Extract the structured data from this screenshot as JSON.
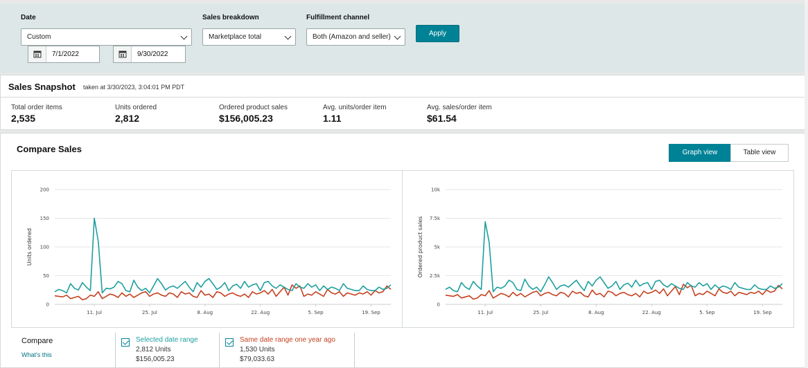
{
  "filters": {
    "date_label": "Date",
    "date_select": "Custom",
    "start_date": "7/1/2022",
    "end_date": "9/30/2022",
    "breakdown_label": "Sales breakdown",
    "breakdown_select": "Marketplace total",
    "channel_label": "Fulfillment channel",
    "channel_select": "Both (Amazon and seller)",
    "apply_label": "Apply"
  },
  "snapshot": {
    "title": "Sales Snapshot",
    "taken": "taken at 3/30/2023, 3:04:01 PM PDT",
    "metrics": [
      {
        "label": "Total order items",
        "value": "2,535"
      },
      {
        "label": "Units ordered",
        "value": "2,812"
      },
      {
        "label": "Ordered product sales",
        "value": "$156,005.23"
      },
      {
        "label": "Avg. units/order item",
        "value": "1.11"
      },
      {
        "label": "Avg. sales/order item",
        "value": "$61.54"
      }
    ]
  },
  "compare": {
    "title": "Compare Sales",
    "graph_view": "Graph view",
    "table_view": "Table view",
    "compare_label": "Compare",
    "whats_this": "What's this",
    "selected": {
      "title": "Selected date range",
      "units": "2,812 Units",
      "sales": "$156,005.23",
      "color": "#1e9e9e"
    },
    "previous": {
      "title": "Same date range one year ago",
      "units": "1,530 Units",
      "sales": "$79,033.63",
      "color": "#c5401f"
    }
  },
  "chart_data": [
    {
      "type": "line",
      "ylabel": "Units ordered",
      "ylim": [
        0,
        200
      ],
      "yticks": [
        "200",
        "150",
        "100",
        "50",
        "0"
      ],
      "yticks_values": [
        200,
        150,
        100,
        50,
        0
      ],
      "xticks": [
        "11. Jul",
        "25. Jul",
        "8. Aug",
        "22. Aug",
        "5. Sep",
        "19. Sep"
      ],
      "xticks_index": [
        10,
        24,
        38,
        52,
        66,
        80
      ],
      "series": [
        {
          "values": [
            22,
            26,
            24,
            20,
            36,
            28,
            25,
            38,
            30,
            24,
            150,
            110,
            20,
            28,
            27,
            30,
            40,
            36,
            24,
            22,
            42,
            30,
            24,
            28,
            20,
            32,
            45,
            36,
            25,
            30,
            32,
            28,
            34,
            40,
            30,
            22,
            38,
            30,
            40,
            45,
            36,
            26,
            30,
            38,
            24,
            32,
            35,
            28,
            40,
            30,
            34,
            36,
            24,
            38,
            40,
            32,
            28,
            34,
            30,
            26,
            24,
            36,
            30,
            28,
            36,
            30,
            34,
            24,
            32,
            26,
            30,
            28,
            24,
            36,
            28,
            26,
            24,
            24,
            32,
            26,
            24,
            24,
            30,
            26,
            28,
            34
          ]
        },
        {
          "values": [
            15,
            14,
            13,
            16,
            10,
            12,
            14,
            8,
            10,
            16,
            14,
            22,
            10,
            14,
            18,
            16,
            12,
            20,
            14,
            18,
            12,
            16,
            20,
            22,
            14,
            18,
            20,
            16,
            14,
            20,
            18,
            12,
            22,
            18,
            20,
            14,
            12,
            24,
            16,
            18,
            12,
            22,
            20,
            14,
            18,
            20,
            16,
            14,
            18,
            12,
            22,
            18,
            20,
            24,
            18,
            26,
            14,
            22,
            30,
            16,
            34,
            28,
            32,
            14,
            18,
            16,
            22,
            18,
            14,
            26,
            20,
            18,
            22,
            14,
            20,
            18,
            16,
            20,
            18,
            22,
            16,
            24,
            20,
            22,
            32,
            26
          ]
        }
      ]
    },
    {
      "type": "line",
      "ylabel": "Ordered product sales",
      "ylim": [
        0,
        10000
      ],
      "yticks": [
        "10k",
        "7.5k",
        "5k",
        "2.5k",
        "0"
      ],
      "yticks_values": [
        10000,
        7500,
        5000,
        2500,
        0
      ],
      "xticks": [
        "11. Jul",
        "25. Jul",
        "8. Aug",
        "22. Aug",
        "5. Sep",
        "19. Sep"
      ],
      "xticks_index": [
        10,
        24,
        38,
        52,
        66,
        80
      ],
      "series": [
        {
          "values": [
            1300,
            1500,
            1200,
            1100,
            1900,
            1500,
            1300,
            2000,
            1600,
            1300,
            7200,
            5400,
            1100,
            1500,
            1400,
            1600,
            2100,
            1900,
            1300,
            1200,
            2200,
            1600,
            1300,
            1500,
            1100,
            1700,
            2400,
            1900,
            1300,
            1600,
            1700,
            1500,
            1800,
            2100,
            1600,
            1200,
            2000,
            1600,
            2100,
            2400,
            1900,
            1400,
            1600,
            2000,
            1300,
            1700,
            1850,
            1500,
            2100,
            1600,
            1800,
            1900,
            1300,
            2000,
            2100,
            1700,
            1500,
            1800,
            1600,
            1400,
            1300,
            1900,
            1600,
            1500,
            1900,
            1600,
            1800,
            1300,
            1700,
            1400,
            1600,
            1500,
            1300,
            1900,
            1500,
            1400,
            1300,
            1300,
            1700,
            1400,
            1300,
            1300,
            1600,
            1400,
            1500,
            1800
          ]
        },
        {
          "values": [
            800,
            750,
            700,
            850,
            550,
            650,
            750,
            450,
            550,
            850,
            750,
            1200,
            550,
            750,
            950,
            850,
            650,
            1050,
            750,
            950,
            650,
            850,
            1050,
            1150,
            750,
            950,
            1050,
            850,
            750,
            1050,
            950,
            650,
            1150,
            950,
            1050,
            750,
            650,
            1250,
            850,
            950,
            650,
            1150,
            1050,
            750,
            950,
            1050,
            850,
            750,
            950,
            650,
            1150,
            950,
            1050,
            1250,
            950,
            1350,
            750,
            1150,
            1550,
            850,
            1750,
            1450,
            1650,
            750,
            950,
            850,
            1150,
            950,
            750,
            1350,
            1050,
            950,
            1150,
            750,
            1050,
            950,
            850,
            1050,
            950,
            1150,
            850,
            1250,
            1050,
            1150,
            1650,
            1350
          ]
        }
      ]
    }
  ]
}
